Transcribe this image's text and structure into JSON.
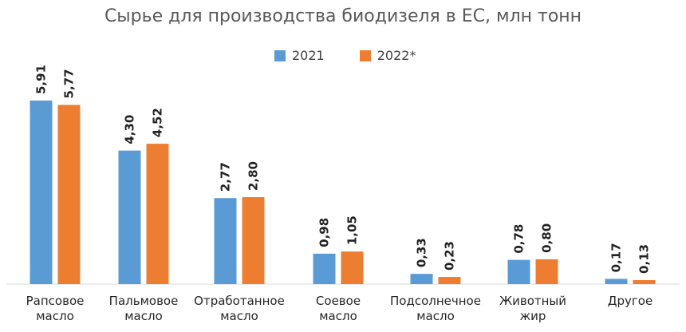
{
  "chart_data": {
    "type": "bar",
    "title": "Сырье для производства биодизеля в ЕС, млн тонн",
    "categories": [
      [
        "Рапсовое",
        "масло"
      ],
      [
        "Пальмовое",
        "масло"
      ],
      [
        "Отработанное",
        "масло"
      ],
      [
        "Соевое",
        "масло"
      ],
      [
        "Подсолнечное",
        "масло"
      ],
      [
        "Животный",
        "жир"
      ],
      [
        "Другое"
      ]
    ],
    "series": [
      {
        "name": "2021",
        "color": "#5b9bd5",
        "values": [
          5.91,
          4.3,
          2.77,
          0.98,
          0.33,
          0.78,
          0.17
        ],
        "labels": [
          "5,91",
          "4,30",
          "2,77",
          "0,98",
          "0,33",
          "0,78",
          "0,17"
        ]
      },
      {
        "name": "2022*",
        "color": "#ed7d31",
        "values": [
          5.77,
          4.52,
          2.8,
          1.05,
          0.23,
          0.8,
          0.13
        ],
        "labels": [
          "5,77",
          "4,52",
          "2,80",
          "1,05",
          "0,23",
          "0,80",
          "0,13"
        ]
      }
    ],
    "ylim": [
      0,
      5.91
    ],
    "grid": false,
    "legend": "top-center",
    "axis_color": "#d9d9d9"
  }
}
